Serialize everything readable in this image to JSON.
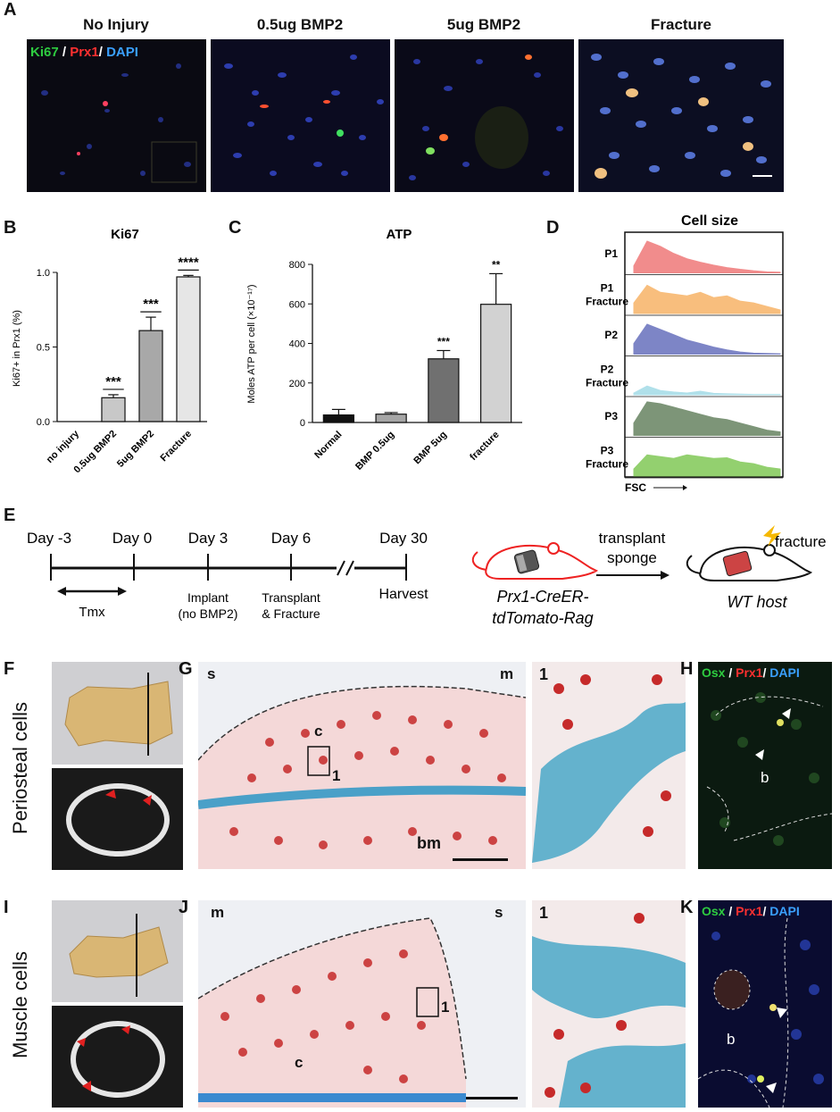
{
  "panel_labels": {
    "A": "A",
    "B": "B",
    "C": "C",
    "D": "D",
    "E": "E",
    "F": "F",
    "G": "G",
    "H": "H",
    "I": "I",
    "J": "J",
    "K": "K"
  },
  "panelA": {
    "titles": [
      "No Injury",
      "0.5ug BMP2",
      "5ug BMP2",
      "Fracture"
    ],
    "stain": {
      "ki67": "Ki67",
      "sep1": " / ",
      "prx1": "Prx1",
      "sep2": "/ ",
      "dapi": "DAPI"
    },
    "colors": {
      "ki67": "#2ecc40",
      "prx1": "#ff3030",
      "dapi": "#3aa0ff"
    }
  },
  "chart_data": [
    {
      "type": "bar",
      "title": "Ki67",
      "ylabel": "Ki67+ in Prx1 (%)",
      "categories": [
        "no injury",
        "0.5ug BMP2",
        "5ug BMP2",
        "Fracture"
      ],
      "values": [
        0.0,
        0.16,
        0.61,
        0.97
      ],
      "errors": [
        0.0,
        0.02,
        0.09,
        0.01
      ],
      "significance": [
        "",
        "***",
        "***",
        "****"
      ],
      "ylim": [
        0,
        1.0
      ],
      "yticks": [
        "0.0",
        "0.5",
        "1.0"
      ],
      "colors": [
        "#ffffff",
        "#c8c8c8",
        "#a8a8a8",
        "#e6e6e6"
      ]
    },
    {
      "type": "bar",
      "title": "ATP",
      "ylabel": "Moles ATP per cell (×10⁻¹⁷)",
      "categories": [
        "Normal",
        "BMP 0.5ug",
        "BMP 5ug",
        "fracture"
      ],
      "values": [
        38,
        42,
        322,
        598
      ],
      "errors": [
        28,
        8,
        42,
        155
      ],
      "significance": [
        "",
        "",
        "***",
        "**"
      ],
      "ylim": [
        0,
        800
      ],
      "yticks": [
        "0",
        "200",
        "400",
        "600",
        "800"
      ],
      "colors": [
        "#111111",
        "#a6a6a6",
        "#707070",
        "#d2d2d2"
      ]
    },
    {
      "type": "area",
      "title": "Cell size",
      "xlabel": "FSC",
      "series": [
        {
          "name": "P1",
          "color": "#f08080"
        },
        {
          "name": "P1 Fracture",
          "color": "#f8b870"
        },
        {
          "name": "P2",
          "color": "#7078c0"
        },
        {
          "name": "P2 Fracture",
          "color": "#a8dde8"
        },
        {
          "name": "P3",
          "color": "#6f8a6a"
        },
        {
          "name": "P3 Fracture",
          "color": "#88cc60"
        }
      ]
    }
  ],
  "panelE": {
    "days": [
      "Day -3",
      "Day 0",
      "Day 3",
      "Day 6",
      "Day 30"
    ],
    "events": [
      "Implant",
      "(no BMP2)",
      "Transplant",
      "& Fracture",
      "Harvest",
      "Tmx"
    ],
    "mouse1_line1": "Prx1-CreER-",
    "mouse1_line2": "tdTomato-Rag",
    "arrow_line1": "transplant",
    "arrow_line2": "sponge",
    "fracture": "fracture",
    "host": "WT host"
  },
  "rowF": {
    "side_label": "Periosteal cells"
  },
  "rowI": {
    "side_label": "Muscle cells"
  },
  "panelG": {
    "s": "s",
    "m": "m",
    "c": "c",
    "inset": "1",
    "bm": "bm"
  },
  "panelJ": {
    "m": "m",
    "s": "s",
    "c": "c",
    "inset": "1"
  },
  "panelH": {
    "osx": "Osx",
    "sep1": " / ",
    "prx1": "Prx1",
    "sep2": "/ ",
    "dapi": "DAPI",
    "b": "b"
  },
  "panelK": {
    "osx": "Osx",
    "sep1": " / ",
    "prx1": "Prx1",
    "sep2": "/ ",
    "dapi": "DAPI",
    "b": "b"
  }
}
